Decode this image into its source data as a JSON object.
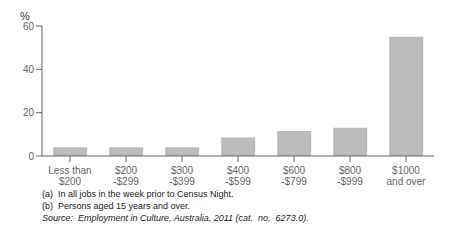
{
  "chart_data": {
    "type": "bar",
    "ylabel": "%",
    "categories": [
      "Less than\n$200",
      "$200\n-$299",
      "$300\n-$399",
      "$400\n-$599",
      "$600\n-$799",
      "$800\n-$999",
      "$1000\nand over"
    ],
    "values": [
      4.0,
      4.0,
      4.0,
      8.5,
      11.5,
      13.0,
      55.0
    ],
    "color": "#bbbbbb",
    "ylim": [
      0,
      60
    ],
    "yticks": [
      0,
      20,
      40,
      60
    ],
    "grid": false,
    "annotations": [
      "(a)  In all jobs in the week prior to Census Night.",
      "(b)  Persons aged 15 years and over.",
      "Source:  Employment in Culture, Australia, 2011 (cat.  no.  6273.0)."
    ]
  }
}
